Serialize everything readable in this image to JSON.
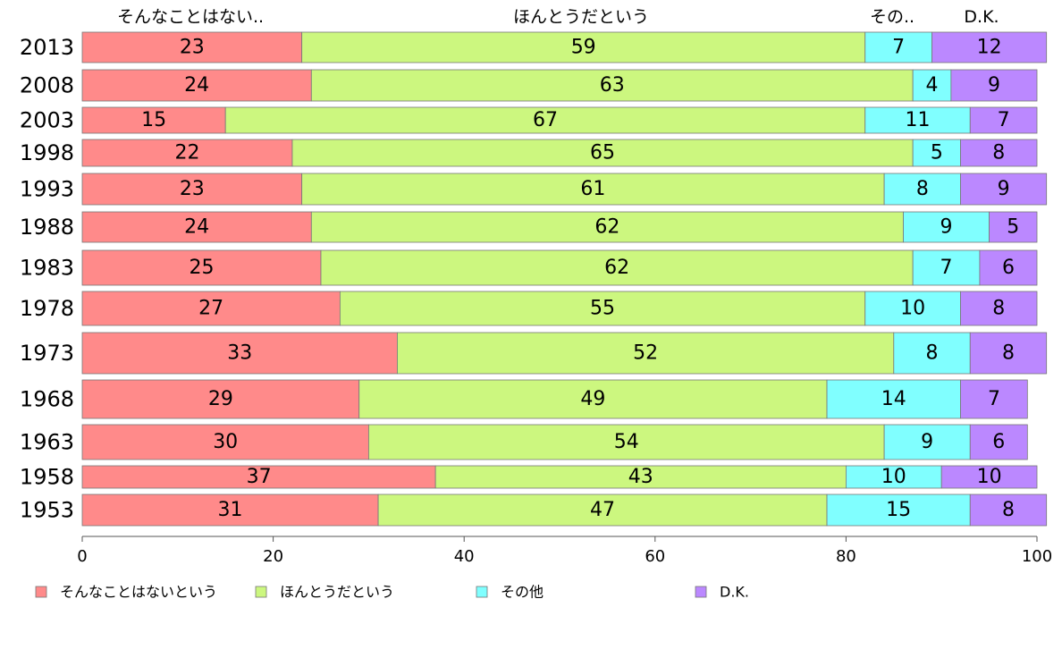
{
  "chart_data": {
    "type": "bar",
    "orientation": "horizontal",
    "stacked": true,
    "categories": [
      "2013",
      "2008",
      "2003",
      "1998",
      "1993",
      "1988",
      "1983",
      "1978",
      "1973",
      "1968",
      "1963",
      "1958",
      "1953"
    ],
    "series": [
      {
        "name": "そんなことはないという",
        "color": "#ff8a8a",
        "values": [
          23,
          24,
          15,
          22,
          23,
          24,
          25,
          27,
          33,
          29,
          30,
          37,
          31
        ]
      },
      {
        "name": "ほんとうだという",
        "color": "#ccf77f",
        "values": [
          59,
          63,
          67,
          65,
          61,
          62,
          62,
          55,
          52,
          49,
          54,
          43,
          47
        ]
      },
      {
        "name": "その他",
        "color": "#80ffff",
        "values": [
          7,
          4,
          11,
          5,
          8,
          9,
          7,
          10,
          8,
          14,
          9,
          10,
          15
        ]
      },
      {
        "name": "D.K.",
        "color": "#bb88ff",
        "values": [
          12,
          9,
          7,
          8,
          9,
          5,
          6,
          8,
          8,
          7,
          6,
          10,
          8
        ]
      }
    ],
    "top_labels": [
      "そんなことはない..",
      "ほんとうだという",
      "その..",
      "D.K."
    ],
    "xlim": [
      0,
      100
    ],
    "xticks": [
      0,
      20,
      40,
      60,
      80,
      100
    ],
    "grid": false,
    "legend_position": "bottom"
  }
}
